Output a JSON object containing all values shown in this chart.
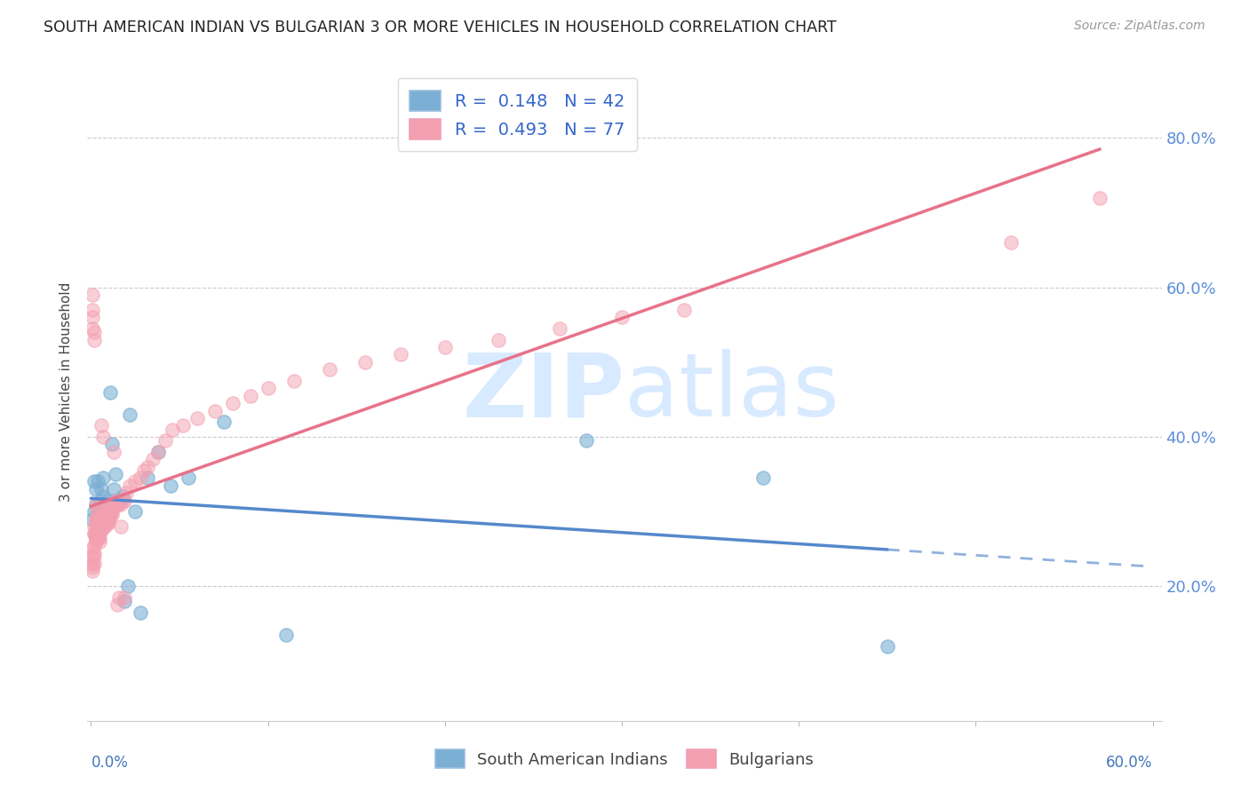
{
  "title": "SOUTH AMERICAN INDIAN VS BULGARIAN 3 OR MORE VEHICLES IN HOUSEHOLD CORRELATION CHART",
  "source": "Source: ZipAtlas.com",
  "ylabel": "3 or more Vehicles in Household",
  "ytick_values": [
    0.2,
    0.4,
    0.6,
    0.8
  ],
  "xmin": -0.002,
  "xmax": 0.605,
  "ymin": 0.02,
  "ymax": 0.9,
  "blue_color": "#7BAFD4",
  "pink_color": "#F4A0B0",
  "blue_line_color": "#5588CC",
  "pink_line_color": "#E8728A",
  "blue_scatter_alpha": 0.6,
  "pink_scatter_alpha": 0.5,
  "scatter_size": 120,
  "south_american_x": [
    0.001,
    0.002,
    0.002,
    0.003,
    0.003,
    0.004,
    0.004,
    0.005,
    0.005,
    0.005,
    0.006,
    0.006,
    0.007,
    0.007,
    0.007,
    0.008,
    0.008,
    0.009,
    0.01,
    0.01,
    0.011,
    0.012,
    0.013,
    0.013,
    0.014,
    0.015,
    0.016,
    0.018,
    0.019,
    0.021,
    0.022,
    0.025,
    0.028,
    0.032,
    0.038,
    0.045,
    0.055,
    0.075,
    0.11,
    0.28,
    0.38,
    0.45
  ],
  "south_american_y": [
    0.29,
    0.3,
    0.34,
    0.31,
    0.33,
    0.3,
    0.34,
    0.285,
    0.31,
    0.295,
    0.3,
    0.33,
    0.28,
    0.32,
    0.345,
    0.295,
    0.31,
    0.3,
    0.29,
    0.315,
    0.46,
    0.39,
    0.315,
    0.33,
    0.35,
    0.31,
    0.315,
    0.32,
    0.18,
    0.2,
    0.43,
    0.3,
    0.165,
    0.345,
    0.38,
    0.335,
    0.345,
    0.42,
    0.135,
    0.395,
    0.345,
    0.12
  ],
  "bulgarian_x": [
    0.001,
    0.001,
    0.001,
    0.001,
    0.001,
    0.002,
    0.002,
    0.002,
    0.002,
    0.002,
    0.002,
    0.003,
    0.003,
    0.003,
    0.003,
    0.003,
    0.004,
    0.004,
    0.004,
    0.004,
    0.004,
    0.005,
    0.005,
    0.005,
    0.005,
    0.006,
    0.006,
    0.006,
    0.007,
    0.007,
    0.007,
    0.008,
    0.008,
    0.008,
    0.009,
    0.009,
    0.01,
    0.01,
    0.01,
    0.011,
    0.011,
    0.012,
    0.012,
    0.013,
    0.014,
    0.015,
    0.016,
    0.017,
    0.018,
    0.019,
    0.02,
    0.022,
    0.025,
    0.028,
    0.03,
    0.032,
    0.035,
    0.038,
    0.042,
    0.046,
    0.052,
    0.06,
    0.07,
    0.08,
    0.09,
    0.1,
    0.115,
    0.135,
    0.155,
    0.175,
    0.2,
    0.23,
    0.265,
    0.3,
    0.335,
    0.52,
    0.57
  ],
  "bulgarian_y": [
    0.22,
    0.225,
    0.23,
    0.24,
    0.25,
    0.23,
    0.24,
    0.245,
    0.255,
    0.27,
    0.28,
    0.26,
    0.265,
    0.27,
    0.28,
    0.29,
    0.265,
    0.27,
    0.28,
    0.29,
    0.3,
    0.265,
    0.27,
    0.275,
    0.285,
    0.275,
    0.285,
    0.29,
    0.28,
    0.29,
    0.295,
    0.28,
    0.29,
    0.3,
    0.285,
    0.295,
    0.29,
    0.3,
    0.31,
    0.295,
    0.305,
    0.3,
    0.31,
    0.305,
    0.315,
    0.31,
    0.185,
    0.31,
    0.315,
    0.315,
    0.325,
    0.335,
    0.34,
    0.345,
    0.355,
    0.36,
    0.37,
    0.38,
    0.395,
    0.41,
    0.415,
    0.425,
    0.435,
    0.445,
    0.455,
    0.465,
    0.475,
    0.49,
    0.5,
    0.51,
    0.52,
    0.53,
    0.545,
    0.56,
    0.57,
    0.66,
    0.72
  ],
  "bg_cluster_x": [
    0.001,
    0.001,
    0.001,
    0.001,
    0.002,
    0.002,
    0.002,
    0.003,
    0.003,
    0.003,
    0.003,
    0.004,
    0.004,
    0.004,
    0.004,
    0.005,
    0.005,
    0.006,
    0.006,
    0.007,
    0.007,
    0.008,
    0.009,
    0.01,
    0.011,
    0.012,
    0.013,
    0.015,
    0.017,
    0.019
  ],
  "bg_cluster_y": [
    0.57,
    0.59,
    0.56,
    0.545,
    0.53,
    0.54,
    0.27,
    0.265,
    0.29,
    0.31,
    0.27,
    0.265,
    0.285,
    0.305,
    0.27,
    0.26,
    0.28,
    0.28,
    0.415,
    0.4,
    0.28,
    0.29,
    0.285,
    0.285,
    0.295,
    0.295,
    0.38,
    0.175,
    0.28,
    0.185
  ]
}
